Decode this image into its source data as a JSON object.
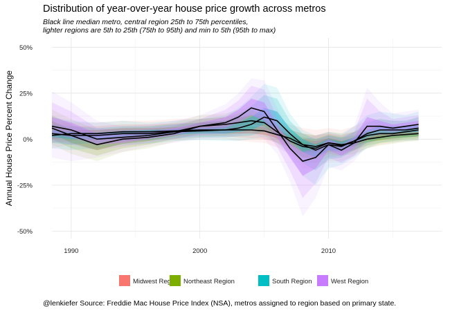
{
  "chart_data": {
    "type": "area",
    "title": "Distribution of year-over-year house price growth across metros",
    "subtitle": "Black line median metro, central region 25th to 75th percentiles,\nlighter regions are 5th to 25th (75th to 95th) and min to 5th (95th to max)",
    "ylabel": "Annual House Price Percent Change",
    "xlabel": "",
    "caption": "@lenkiefer Source: Freddie Mac House Price Index (NSA), metros assigned to region based on primary state.",
    "xlim": [
      1988.5,
      2018.8
    ],
    "ylim": [
      -0.54,
      0.55
    ],
    "x_ticks": [
      1990,
      2000,
      2010
    ],
    "x_tick_labels": [
      "1990",
      "2000",
      "2010"
    ],
    "y_ticks": [
      -0.5,
      -0.25,
      0,
      0.25,
      0.5
    ],
    "y_tick_labels": [
      "-50%",
      "-25%",
      "0%",
      "25%",
      "50%"
    ],
    "grid": true,
    "legend_position": "bottom",
    "colors": {
      "Midwest Region": "#F8766D",
      "Northeast Region": "#7CAE00",
      "South Region": "#00BFC4",
      "West Region": "#C77CFF",
      "median_line": "#000000"
    },
    "x": [
      1988.5,
      1990,
      1992,
      1994,
      1996,
      1998,
      2000,
      2002,
      2003,
      2004,
      2005,
      2006,
      2007,
      2008,
      2009,
      2010,
      2011,
      2012,
      2013,
      2014,
      2015,
      2016,
      2017
    ],
    "series": [
      {
        "name": "Midwest Region",
        "median": [
          0.02,
          0.03,
          0.03,
          0.04,
          0.04,
          0.045,
          0.05,
          0.05,
          0.05,
          0.05,
          0.045,
          0.025,
          0.005,
          -0.03,
          -0.04,
          -0.02,
          -0.035,
          -0.01,
          0.02,
          0.03,
          0.03,
          0.04,
          0.05
        ],
        "p25": [
          0.0,
          0.01,
          0.015,
          0.02,
          0.025,
          0.03,
          0.035,
          0.03,
          0.03,
          0.03,
          0.025,
          0.005,
          -0.015,
          -0.06,
          -0.07,
          -0.045,
          -0.06,
          -0.03,
          0.0,
          0.01,
          0.015,
          0.025,
          0.03
        ],
        "p75": [
          0.04,
          0.05,
          0.05,
          0.06,
          0.06,
          0.065,
          0.07,
          0.065,
          0.07,
          0.07,
          0.065,
          0.045,
          0.025,
          0.0,
          -0.01,
          0.005,
          -0.01,
          0.01,
          0.04,
          0.05,
          0.05,
          0.055,
          0.065
        ],
        "p5": [
          -0.02,
          -0.01,
          0.0,
          0.005,
          0.01,
          0.015,
          0.02,
          0.015,
          0.01,
          0.005,
          0.0,
          -0.02,
          -0.045,
          -0.1,
          -0.11,
          -0.08,
          -0.09,
          -0.06,
          -0.02,
          -0.005,
          0.0,
          0.01,
          0.015
        ],
        "p95": [
          0.06,
          0.07,
          0.07,
          0.08,
          0.08,
          0.085,
          0.09,
          0.09,
          0.095,
          0.1,
          0.09,
          0.07,
          0.05,
          0.03,
          0.02,
          0.03,
          0.02,
          0.04,
          0.07,
          0.08,
          0.075,
          0.075,
          0.09
        ],
        "min": [
          -0.05,
          -0.03,
          -0.015,
          -0.01,
          -0.005,
          0.0,
          0.005,
          0.0,
          -0.01,
          -0.015,
          -0.02,
          -0.045,
          -0.08,
          -0.16,
          -0.16,
          -0.12,
          -0.12,
          -0.09,
          -0.05,
          -0.03,
          -0.02,
          -0.01,
          -0.005
        ],
        "max": [
          0.08,
          0.09,
          0.09,
          0.1,
          0.1,
          0.11,
          0.11,
          0.12,
          0.13,
          0.14,
          0.12,
          0.1,
          0.08,
          0.06,
          0.05,
          0.06,
          0.05,
          0.07,
          0.1,
          0.11,
          0.1,
          0.1,
          0.12
        ]
      },
      {
        "name": "Northeast Region",
        "median": [
          0.06,
          0.02,
          -0.03,
          0.0,
          0.01,
          0.03,
          0.07,
          0.08,
          0.09,
          0.1,
          0.09,
          0.04,
          -0.01,
          -0.04,
          -0.05,
          -0.02,
          -0.03,
          -0.02,
          0.0,
          0.01,
          0.02,
          0.025,
          0.03
        ],
        "p25": [
          0.03,
          -0.02,
          -0.06,
          -0.025,
          -0.01,
          0.015,
          0.05,
          0.06,
          0.07,
          0.08,
          0.07,
          0.02,
          -0.03,
          -0.07,
          -0.075,
          -0.045,
          -0.05,
          -0.04,
          -0.015,
          -0.005,
          0.005,
          0.01,
          0.015
        ],
        "p75": [
          0.1,
          0.05,
          0.0,
          0.02,
          0.03,
          0.05,
          0.09,
          0.1,
          0.115,
          0.13,
          0.11,
          0.06,
          0.015,
          -0.015,
          -0.025,
          0.005,
          -0.01,
          0.0,
          0.02,
          0.025,
          0.035,
          0.04,
          0.045
        ],
        "p5": [
          0.0,
          -0.05,
          -0.09,
          -0.05,
          -0.03,
          0.0,
          0.03,
          0.04,
          0.05,
          0.06,
          0.045,
          0.0,
          -0.05,
          -0.1,
          -0.1,
          -0.07,
          -0.07,
          -0.06,
          -0.035,
          -0.02,
          -0.01,
          0.0,
          0.005
        ],
        "p95": [
          0.13,
          0.08,
          0.03,
          0.04,
          0.05,
          0.07,
          0.11,
          0.12,
          0.14,
          0.16,
          0.13,
          0.08,
          0.035,
          0.01,
          0.0,
          0.025,
          0.01,
          0.02,
          0.04,
          0.04,
          0.05,
          0.055,
          0.06
        ],
        "min": [
          -0.03,
          -0.08,
          -0.12,
          -0.07,
          -0.05,
          -0.015,
          0.01,
          0.02,
          0.03,
          0.04,
          0.02,
          -0.02,
          -0.07,
          -0.13,
          -0.13,
          -0.1,
          -0.09,
          -0.08,
          -0.05,
          -0.035,
          -0.025,
          -0.015,
          -0.01
        ],
        "max": [
          0.16,
          0.11,
          0.05,
          0.06,
          0.07,
          0.09,
          0.13,
          0.14,
          0.16,
          0.18,
          0.15,
          0.1,
          0.05,
          0.03,
          0.02,
          0.04,
          0.03,
          0.04,
          0.06,
          0.055,
          0.065,
          0.07,
          0.075
        ]
      },
      {
        "name": "South Region",
        "median": [
          0.03,
          0.02,
          0.02,
          0.03,
          0.03,
          0.04,
          0.045,
          0.05,
          0.06,
          0.08,
          0.12,
          0.1,
          0.03,
          -0.03,
          -0.06,
          -0.03,
          -0.04,
          -0.01,
          0.03,
          0.05,
          0.05,
          0.05,
          0.06
        ],
        "p25": [
          0.01,
          0.0,
          0.0,
          0.01,
          0.015,
          0.025,
          0.03,
          0.03,
          0.04,
          0.05,
          0.08,
          0.06,
          0.0,
          -0.07,
          -0.1,
          -0.06,
          -0.065,
          -0.03,
          0.01,
          0.03,
          0.03,
          0.035,
          0.04
        ],
        "p75": [
          0.05,
          0.04,
          0.035,
          0.045,
          0.05,
          0.055,
          0.06,
          0.07,
          0.09,
          0.12,
          0.17,
          0.15,
          0.06,
          0.0,
          -0.03,
          0.0,
          -0.015,
          0.01,
          0.05,
          0.07,
          0.07,
          0.07,
          0.08
        ],
        "p5": [
          -0.02,
          -0.03,
          -0.02,
          -0.01,
          -0.005,
          0.005,
          0.01,
          0.01,
          0.015,
          0.02,
          0.04,
          0.02,
          -0.04,
          -0.13,
          -0.17,
          -0.11,
          -0.1,
          -0.06,
          -0.02,
          0.0,
          0.005,
          0.01,
          0.015
        ],
        "p95": [
          0.08,
          0.07,
          0.06,
          0.07,
          0.07,
          0.08,
          0.09,
          0.1,
          0.13,
          0.18,
          0.24,
          0.22,
          0.1,
          0.03,
          0.0,
          0.02,
          0.01,
          0.04,
          0.09,
          0.11,
          0.1,
          0.1,
          0.12
        ],
        "min": [
          -0.05,
          -0.06,
          -0.05,
          -0.03,
          -0.025,
          -0.01,
          -0.005,
          -0.01,
          -0.01,
          0.0,
          0.01,
          -0.02,
          -0.09,
          -0.2,
          -0.25,
          -0.16,
          -0.14,
          -0.1,
          -0.05,
          -0.02,
          -0.015,
          -0.01,
          -0.005
        ],
        "max": [
          0.12,
          0.1,
          0.09,
          0.1,
          0.09,
          0.1,
          0.11,
          0.13,
          0.17,
          0.23,
          0.3,
          0.28,
          0.14,
          0.05,
          0.02,
          0.04,
          0.03,
          0.07,
          0.13,
          0.15,
          0.14,
          0.13,
          0.15
        ]
      },
      {
        "name": "West Region",
        "median": [
          0.07,
          0.05,
          0.0,
          0.01,
          0.02,
          0.04,
          0.07,
          0.09,
          0.12,
          0.17,
          0.15,
          0.05,
          -0.05,
          -0.12,
          -0.1,
          -0.03,
          -0.06,
          -0.02,
          0.07,
          0.07,
          0.06,
          0.07,
          0.08
        ],
        "p25": [
          0.03,
          0.01,
          -0.03,
          -0.02,
          0.0,
          0.02,
          0.05,
          0.06,
          0.09,
          0.13,
          0.1,
          0.01,
          -0.1,
          -0.2,
          -0.16,
          -0.06,
          -0.09,
          -0.05,
          0.04,
          0.05,
          0.04,
          0.05,
          0.06
        ],
        "p75": [
          0.12,
          0.09,
          0.03,
          0.03,
          0.04,
          0.06,
          0.09,
          0.12,
          0.16,
          0.22,
          0.2,
          0.08,
          -0.02,
          -0.07,
          -0.05,
          0.0,
          -0.03,
          0.01,
          0.12,
          0.1,
          0.08,
          0.09,
          0.1
        ],
        "p5": [
          -0.01,
          -0.03,
          -0.06,
          -0.04,
          -0.02,
          0.0,
          0.02,
          0.03,
          0.05,
          0.08,
          0.05,
          -0.04,
          -0.17,
          -0.32,
          -0.24,
          -0.1,
          -0.13,
          -0.09,
          0.0,
          0.02,
          0.02,
          0.03,
          0.03
        ],
        "p95": [
          0.2,
          0.15,
          0.06,
          0.05,
          0.06,
          0.08,
          0.11,
          0.16,
          0.21,
          0.29,
          0.27,
          0.12,
          0.01,
          -0.03,
          -0.01,
          0.02,
          0.0,
          0.04,
          0.22,
          0.15,
          0.11,
          0.12,
          0.13
        ],
        "min": [
          -0.1,
          -0.12,
          -0.1,
          -0.07,
          -0.04,
          -0.02,
          0.0,
          0.01,
          0.02,
          0.04,
          0.0,
          -0.08,
          -0.23,
          -0.42,
          -0.32,
          -0.15,
          -0.17,
          -0.12,
          -0.03,
          0.0,
          0.0,
          0.01,
          0.01
        ],
        "max": [
          0.26,
          0.2,
          0.1,
          0.07,
          0.08,
          0.1,
          0.13,
          0.19,
          0.25,
          0.33,
          0.32,
          0.17,
          0.04,
          0.0,
          0.02,
          0.04,
          0.02,
          0.07,
          0.28,
          0.2,
          0.14,
          0.15,
          0.16
        ]
      }
    ]
  }
}
